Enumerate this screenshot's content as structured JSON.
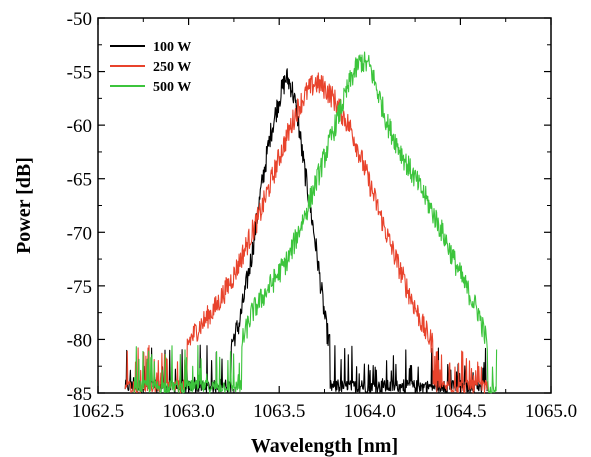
{
  "chart_data": {
    "type": "line",
    "title": "",
    "xlabel": "Wavelength [nm]",
    "ylabel": "Power [dB]",
    "xlim": [
      1062.5,
      1065.0
    ],
    "ylim": [
      -85,
      -50
    ],
    "xticks": [
      "1062.5",
      "1063.0",
      "1063.5",
      "1064.0",
      "1064.5",
      "1065.0"
    ],
    "yticks": [
      "-50",
      "-55",
      "-60",
      "-65",
      "-70",
      "-75",
      "-80",
      "-85"
    ],
    "grid": false,
    "legend_position": "top-left",
    "noise_floor": -85,
    "series": [
      {
        "name": "100 W",
        "color": "#000000",
        "x": [
          1062.65,
          1062.8,
          1062.95,
          1063.1,
          1063.2,
          1063.28,
          1063.35,
          1063.4,
          1063.45,
          1063.5,
          1063.54,
          1063.57,
          1063.6,
          1063.63,
          1063.67,
          1063.7,
          1063.73,
          1063.76,
          1063.8,
          1063.85,
          1063.95,
          1064.1,
          1064.3,
          1064.5,
          1064.65
        ],
        "y": [
          -84,
          -84,
          -83.5,
          -83,
          -82,
          -78.5,
          -72,
          -66,
          -61,
          -57.5,
          -55.5,
          -56.5,
          -59,
          -63,
          -67.5,
          -71,
          -75,
          -79,
          -82,
          -84,
          -84,
          -84,
          -84,
          -84,
          -84
        ]
      },
      {
        "name": "250 W",
        "color": "#e8432c",
        "x": [
          1062.65,
          1062.8,
          1062.95,
          1063.05,
          1063.15,
          1063.25,
          1063.3,
          1063.4,
          1063.5,
          1063.6,
          1063.65,
          1063.7,
          1063.75,
          1063.8,
          1063.9,
          1064.0,
          1064.1,
          1064.2,
          1064.3,
          1064.4,
          1064.5,
          1064.6,
          1064.65
        ],
        "y": [
          -83.5,
          -82,
          -81.5,
          -79,
          -77,
          -74,
          -72,
          -68,
          -63,
          -58.5,
          -57,
          -56,
          -56.5,
          -57.5,
          -60.5,
          -65.5,
          -70.5,
          -75,
          -79,
          -82,
          -84,
          -84,
          -84
        ]
      },
      {
        "name": "500 W",
        "color": "#3cc43c",
        "x": [
          1062.7,
          1062.85,
          1063.0,
          1063.15,
          1063.25,
          1063.3,
          1063.35,
          1063.45,
          1063.55,
          1063.65,
          1063.75,
          1063.85,
          1063.9,
          1063.95,
          1064.0,
          1064.1,
          1064.2,
          1064.3,
          1064.4,
          1064.5,
          1064.6,
          1064.65,
          1064.7
        ],
        "y": [
          -84,
          -84,
          -84,
          -84,
          -83.5,
          -80,
          -77.5,
          -75,
          -72.5,
          -68,
          -63,
          -58,
          -55.5,
          -54,
          -54.5,
          -60,
          -63.5,
          -66.5,
          -70,
          -74,
          -77.5,
          -80.5,
          -85
        ]
      }
    ]
  }
}
